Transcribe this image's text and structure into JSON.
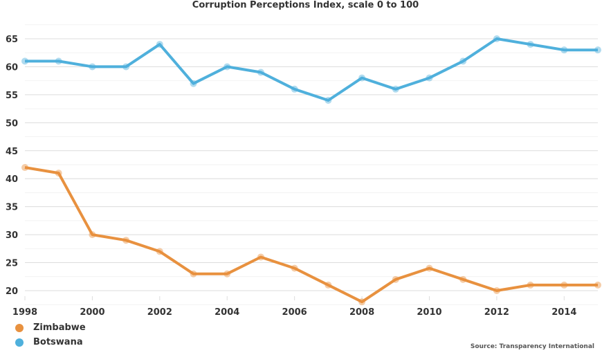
{
  "chart_data": {
    "type": "line",
    "title": "Corruption Perceptions Index, scale 0 to 100",
    "xlabel": "",
    "ylabel": "",
    "x": [
      1998,
      1999,
      2000,
      2001,
      2002,
      2003,
      2004,
      2005,
      2006,
      2007,
      2008,
      2009,
      2010,
      2011,
      2012,
      2013,
      2014,
      2015
    ],
    "x_ticks": [
      "1998",
      "2000",
      "2002",
      "2004",
      "2006",
      "2008",
      "2010",
      "2012",
      "2014"
    ],
    "y_ticks": [
      "20",
      "25",
      "30",
      "35",
      "40",
      "45",
      "50",
      "55",
      "60",
      "65"
    ],
    "xlim": [
      1998,
      2015
    ],
    "ylim": [
      17,
      67
    ],
    "grid": true,
    "legend_position": "bottom-left",
    "series": [
      {
        "name": "Zimbabwe",
        "color": "#e8913f",
        "values": [
          42,
          41,
          30,
          29,
          27,
          23,
          23,
          26,
          24,
          21,
          18,
          22,
          24,
          22,
          20,
          21,
          21,
          21
        ]
      },
      {
        "name": "Botswana",
        "color": "#4fb0dc",
        "values": [
          61,
          61,
          60,
          60,
          64,
          57,
          60,
          59,
          56,
          54,
          58,
          56,
          58,
          61,
          65,
          64,
          63,
          63
        ]
      }
    ],
    "source": "Source: Transparency International"
  }
}
